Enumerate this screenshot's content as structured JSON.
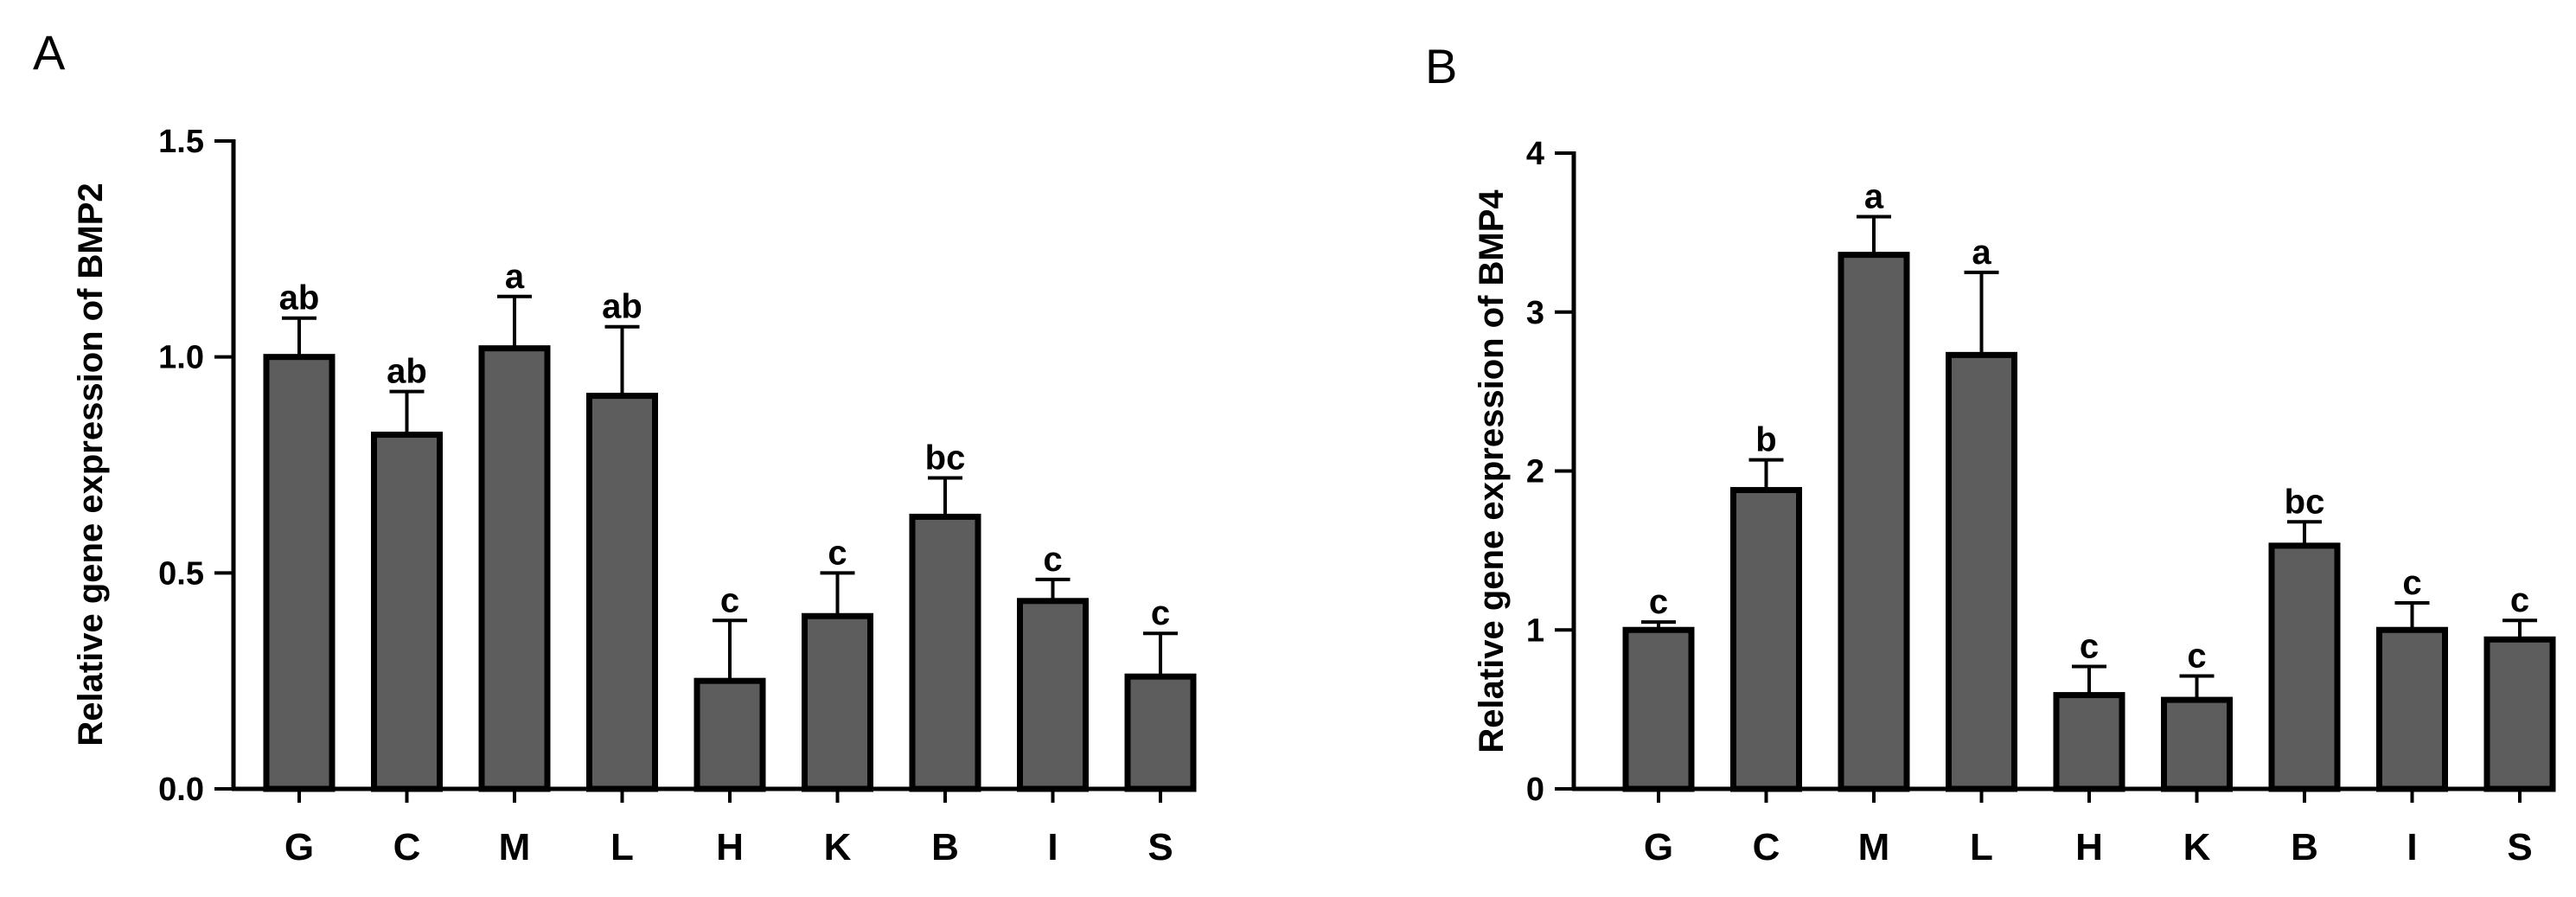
{
  "chart_data": [
    {
      "type": "bar",
      "panel": "A",
      "ylabel": "Relative gene expression of BMP2",
      "categories": [
        "G",
        "C",
        "M",
        "L",
        "H",
        "K",
        "B",
        "I",
        "S"
      ],
      "values": [
        1.0,
        0.82,
        1.02,
        0.91,
        0.25,
        0.4,
        0.63,
        0.435,
        0.26
      ],
      "error_upper": [
        1.09,
        0.92,
        1.14,
        1.07,
        0.39,
        0.5,
        0.72,
        0.485,
        0.36
      ],
      "significance": [
        "ab",
        "ab",
        "a",
        "ab",
        "c",
        "c",
        "bc",
        "c",
        "c"
      ],
      "ylim": [
        0,
        1.5
      ],
      "yticks": [
        0.0,
        0.5,
        1.0,
        1.5
      ],
      "ytick_labels": [
        "0.0",
        "0.5",
        "1.0",
        "1.5"
      ],
      "bar_color": "#5d5d5d",
      "edge_color": "#000000"
    },
    {
      "type": "bar",
      "panel": "B",
      "ylabel": "Relative gene expression of BMP4",
      "categories": [
        "G",
        "C",
        "M",
        "L",
        "H",
        "K",
        "B",
        "I",
        "S"
      ],
      "values": [
        1.0,
        1.88,
        3.36,
        2.73,
        0.59,
        0.56,
        1.53,
        1.0,
        0.94
      ],
      "error_upper": [
        1.05,
        2.07,
        3.6,
        3.25,
        0.77,
        0.71,
        1.68,
        1.17,
        1.06
      ],
      "significance": [
        "c",
        "b",
        "a",
        "a",
        "c",
        "c",
        "bc",
        "c",
        "c"
      ],
      "ylim": [
        0,
        4
      ],
      "yticks": [
        0,
        1,
        2,
        3,
        4
      ],
      "ytick_labels": [
        "0",
        "1",
        "2",
        "3",
        "4"
      ],
      "bar_color": "#5d5d5d",
      "edge_color": "#000000"
    }
  ]
}
